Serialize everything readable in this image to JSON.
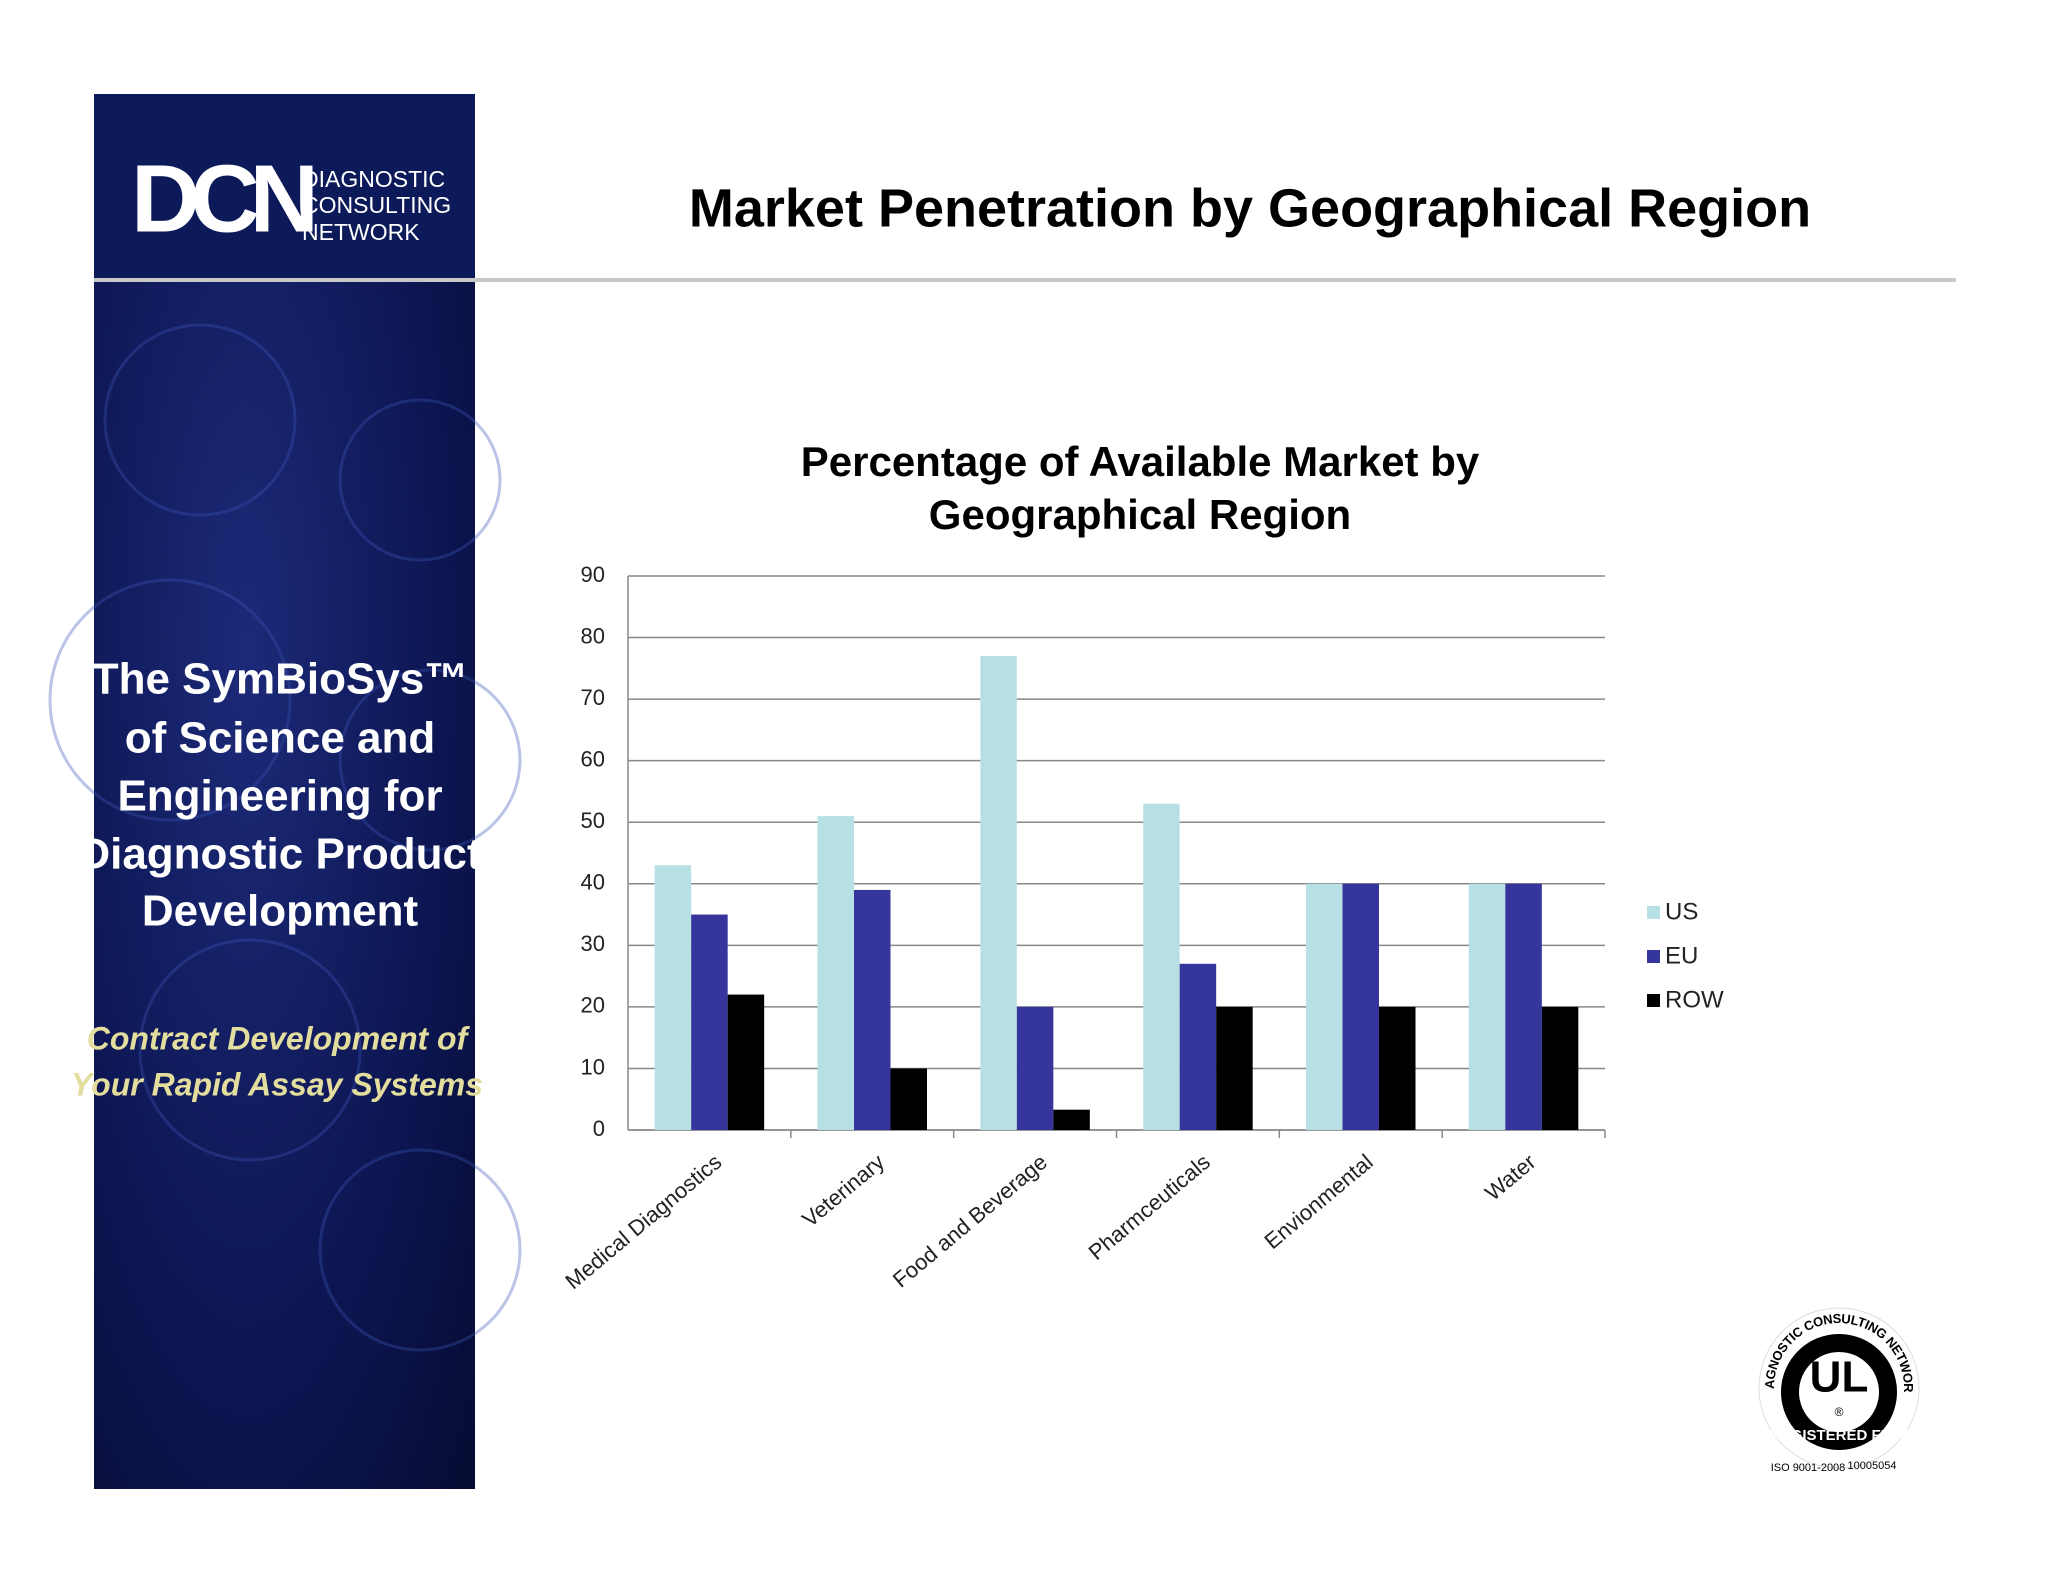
{
  "logo": {
    "mark": "DCN",
    "lines": [
      "DIAGNOSTIC",
      "CONSULTING",
      "NETWORK"
    ]
  },
  "header": {
    "title": "Market Penetration by Geographical Region"
  },
  "sidebar": {
    "headline": [
      "The SymBioSys™",
      "of Science and",
      "Engineering for",
      "Diagnostic  Product",
      "Development"
    ],
    "tagline": [
      "Contract Development of",
      "Your Rapid Assay Systems"
    ]
  },
  "badge": {
    "ring": "DIAGNOSTIC CONSULTING NETWORK",
    "mark": "UL",
    "registered": "®",
    "banner": "REGISTERED FIRM",
    "iso": "ISO 9001-2008",
    "number": "10005054"
  },
  "chart_data": {
    "type": "bar",
    "title": [
      "Percentage of Available Market by",
      "Geographical Region"
    ],
    "categories": [
      "Medical Diagnostics",
      "Veterinary",
      "Food and Beverage",
      "Pharmceuticals",
      "Envionmental",
      "Water"
    ],
    "series": [
      {
        "name": "US",
        "color": "#b7e0e4",
        "values": [
          43,
          51,
          77,
          53,
          40,
          40
        ]
      },
      {
        "name": "EU",
        "color": "#35359b",
        "values": [
          35,
          39,
          20,
          27,
          40,
          40
        ]
      },
      {
        "name": "ROW",
        "color": "#000000",
        "values": [
          22,
          10,
          3.3,
          20,
          20,
          20
        ]
      }
    ],
    "ylim": [
      0,
      90
    ],
    "yticks": [
      0,
      10,
      20,
      30,
      40,
      50,
      60,
      70,
      80,
      90
    ],
    "grid": true,
    "legend": "right"
  }
}
